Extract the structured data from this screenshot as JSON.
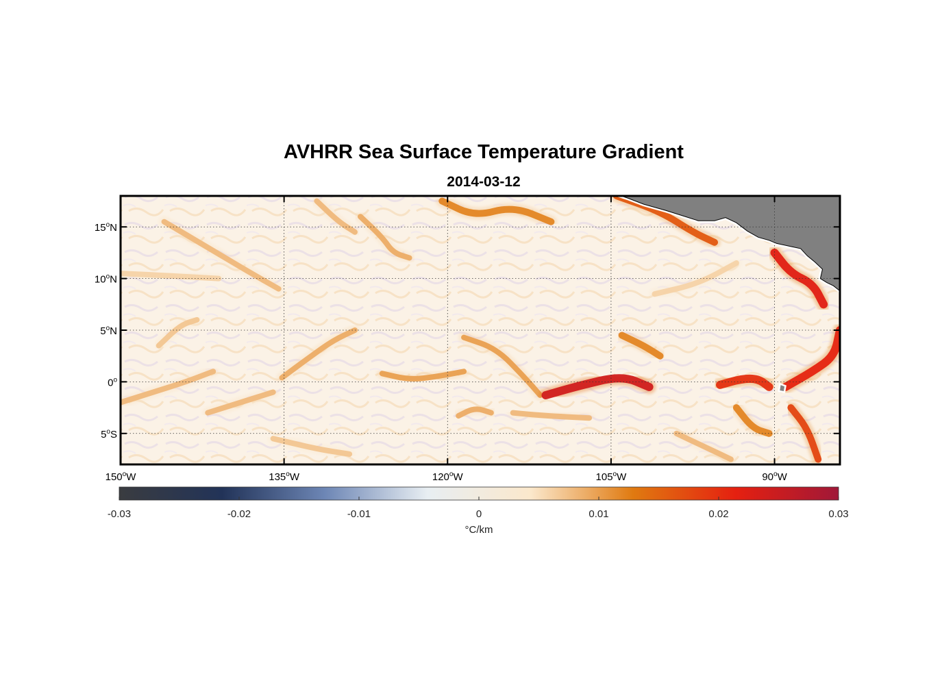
{
  "title": "AVHRR Sea Surface Temperature Gradient",
  "subtitle": "2014-03-12",
  "map": {
    "lon_range": [
      -150,
      -84
    ],
    "lat_range": [
      -8,
      18
    ],
    "grid": "dotted",
    "land_color": "#808080",
    "lat_ticks": [
      {
        "value": 15,
        "deg": "15",
        "hemi": "N"
      },
      {
        "value": 10,
        "deg": "10",
        "hemi": "N"
      },
      {
        "value": 5,
        "deg": "5",
        "hemi": "N"
      },
      {
        "value": 0,
        "deg": "0",
        "hemi": ""
      },
      {
        "value": -5,
        "deg": "5",
        "hemi": "S"
      }
    ],
    "lon_ticks": [
      {
        "value": -150,
        "deg": "150",
        "hemi": "W"
      },
      {
        "value": -135,
        "deg": "135",
        "hemi": "W"
      },
      {
        "value": -120,
        "deg": "120",
        "hemi": "W"
      },
      {
        "value": -105,
        "deg": "105",
        "hemi": "W"
      },
      {
        "value": -90,
        "deg": "90",
        "hemi": "W"
      }
    ]
  },
  "colorbar": {
    "range": [
      -0.03,
      0.03
    ],
    "ticks": [
      "-0.03",
      "-0.02",
      "-0.01",
      "0",
      "0.01",
      "0.02",
      "0.03"
    ],
    "tick_values": [
      -0.03,
      -0.02,
      -0.01,
      0,
      0.01,
      0.02,
      0.03
    ],
    "label": "°C/km",
    "colors": [
      "#3a3c40",
      "#223358",
      "#6d86b5",
      "#e8eef2",
      "#fbe8cc",
      "#e07a10",
      "#e52010",
      "#a01838"
    ]
  },
  "fronts": [
    {
      "pts": [
        [
          -135.2,
          0.4
        ],
        [
          -132.5,
          2.5
        ],
        [
          -130.5,
          4.0
        ],
        [
          -128.5,
          5.0
        ]
      ],
      "strength": 0.009
    },
    {
      "pts": [
        [
          -126.0,
          0.8
        ],
        [
          -123.5,
          0.2
        ],
        [
          -121.0,
          0.5
        ],
        [
          -118.5,
          1.0
        ]
      ],
      "strength": 0.01
    },
    {
      "pts": [
        [
          -118.5,
          4.3
        ],
        [
          -115.5,
          3.2
        ],
        [
          -113.0,
          0.5
        ],
        [
          -111.5,
          -1.3
        ]
      ],
      "strength": 0.01
    },
    {
      "pts": [
        [
          -111.0,
          -1.3
        ],
        [
          -108.0,
          -0.4
        ],
        [
          -104.0,
          0.6
        ],
        [
          -101.5,
          -0.5
        ]
      ],
      "strength": 0.024
    },
    {
      "pts": [
        [
          -95.0,
          -0.3
        ],
        [
          -93.0,
          0.3
        ],
        [
          -91.5,
          0.3
        ],
        [
          -90.5,
          -0.5
        ]
      ],
      "strength": 0.02
    },
    {
      "pts": [
        [
          -89.0,
          -0.5
        ],
        [
          -86.5,
          1.0
        ],
        [
          -84.5,
          2.5
        ],
        [
          -84.0,
          5.0
        ]
      ],
      "strength": 0.021
    },
    {
      "pts": [
        [
          -88.5,
          -2.5
        ],
        [
          -87.0,
          -4.5
        ],
        [
          -86.0,
          -7.5
        ]
      ],
      "strength": 0.018
    },
    {
      "pts": [
        [
          -120.5,
          17.5
        ],
        [
          -117.5,
          16.0
        ],
        [
          -114.0,
          17.0
        ],
        [
          -110.5,
          15.5
        ]
      ],
      "strength": 0.012
    },
    {
      "pts": [
        [
          -104.5,
          18.0
        ],
        [
          -100.5,
          16.5
        ],
        [
          -97.5,
          14.5
        ],
        [
          -95.5,
          13.5
        ]
      ],
      "strength": 0.016
    },
    {
      "pts": [
        [
          -90.0,
          12.5
        ],
        [
          -88.5,
          10.5
        ],
        [
          -86.5,
          9.5
        ],
        [
          -85.5,
          7.5
        ]
      ],
      "strength": 0.022
    },
    {
      "pts": [
        [
          -146.0,
          15.5
        ],
        [
          -142.0,
          13.0
        ],
        [
          -138.0,
          10.5
        ],
        [
          -135.5,
          9.0
        ]
      ],
      "strength": 0.008
    },
    {
      "pts": [
        [
          -150.0,
          -2.0
        ],
        [
          -147.0,
          -1.0
        ],
        [
          -144.0,
          0.0
        ],
        [
          -141.5,
          1.0
        ]
      ],
      "strength": 0.008
    },
    {
      "pts": [
        [
          -142.0,
          -3.0
        ],
        [
          -139.0,
          -2.0
        ],
        [
          -136.0,
          -1.0
        ]
      ],
      "strength": 0.008
    },
    {
      "pts": [
        [
          -128.0,
          16.0
        ],
        [
          -126.0,
          14.0
        ],
        [
          -125.0,
          12.5
        ],
        [
          -123.5,
          12.0
        ]
      ],
      "strength": 0.009
    },
    {
      "pts": [
        [
          -104.0,
          4.5
        ],
        [
          -102.0,
          3.5
        ],
        [
          -100.5,
          2.5
        ]
      ],
      "strength": 0.012
    },
    {
      "pts": [
        [
          -114.0,
          -3.0
        ],
        [
          -111.0,
          -3.3
        ],
        [
          -107.0,
          -3.5
        ]
      ],
      "strength": 0.008
    },
    {
      "pts": [
        [
          -146.5,
          3.5
        ],
        [
          -144.5,
          5.5
        ],
        [
          -143.0,
          6.0
        ]
      ],
      "strength": 0.007
    },
    {
      "pts": [
        [
          -150.0,
          10.5
        ],
        [
          -146.0,
          10.3
        ],
        [
          -141.0,
          10.0
        ]
      ],
      "strength": 0.006
    },
    {
      "pts": [
        [
          -132.0,
          17.5
        ],
        [
          -130.0,
          15.5
        ],
        [
          -128.5,
          14.5
        ]
      ],
      "strength": 0.008
    },
    {
      "pts": [
        [
          -101.0,
          8.5
        ],
        [
          -97.0,
          9.5
        ],
        [
          -93.5,
          11.5
        ]
      ],
      "strength": 0.006
    },
    {
      "pts": [
        [
          -119.0,
          -3.3
        ],
        [
          -117.5,
          -2.5
        ],
        [
          -116.0,
          -3.0
        ]
      ],
      "strength": 0.009
    },
    {
      "pts": [
        [
          -93.5,
          -2.5
        ],
        [
          -92.0,
          -4.5
        ],
        [
          -90.5,
          -5.0
        ]
      ],
      "strength": 0.012
    },
    {
      "pts": [
        [
          -136.0,
          -5.5
        ],
        [
          -132.0,
          -6.5
        ],
        [
          -129.0,
          -7.0
        ]
      ],
      "strength": 0.007
    },
    {
      "pts": [
        [
          -99.0,
          -5.0
        ],
        [
          -96.0,
          -6.5
        ],
        [
          -94.0,
          -7.5
        ]
      ],
      "strength": 0.008
    }
  ]
}
